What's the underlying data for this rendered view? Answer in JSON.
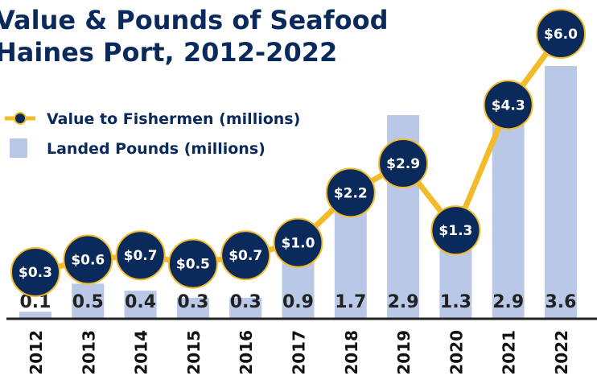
{
  "chart_data": {
    "type": "bar",
    "title": "Value & Pounds of Seafood Haines Port, 2012-2022",
    "title_lines": [
      "Value & Pounds of Seafood",
      "Haines Port, 2012-2022"
    ],
    "categories": [
      "2012",
      "2013",
      "2014",
      "2015",
      "2016",
      "2017",
      "2018",
      "2019",
      "2020",
      "2021",
      "2022"
    ],
    "series": [
      {
        "name": "Landed Pounds (millions)",
        "kind": "bar",
        "values": [
          0.1,
          0.5,
          0.4,
          0.3,
          0.3,
          0.9,
          1.7,
          2.9,
          1.3,
          2.9,
          3.6
        ],
        "labels": [
          "0.1",
          "0.5",
          "0.4",
          "0.3",
          "0.3",
          "0.9",
          "1.7",
          "2.9",
          "1.3",
          "2.9",
          "3.6"
        ],
        "color": "#b8c8e6"
      },
      {
        "name": "Value to Fishermen (millions)",
        "kind": "line",
        "values": [
          0.3,
          0.6,
          0.7,
          0.5,
          0.7,
          1.0,
          2.2,
          2.9,
          1.3,
          4.3,
          6.0
        ],
        "labels": [
          "$0.3",
          "$0.6",
          "$0.7",
          "$0.5",
          "$0.7",
          "$1.0",
          "$2.2",
          "$2.9",
          "$1.3",
          "$4.3",
          "$6.0"
        ],
        "color": "#f2bb2a",
        "marker_color": "#0b2a5c"
      }
    ],
    "legend": {
      "placement": "top-left",
      "entries": [
        "Value to Fishermen (millions)",
        "Landed Pounds (millions)"
      ]
    },
    "ylim_pounds": [
      0,
      3.6
    ],
    "ylim_value": [
      0,
      6.0
    ],
    "grid": false,
    "axis_color": "#222222",
    "title_color": "#0b2a5c"
  }
}
